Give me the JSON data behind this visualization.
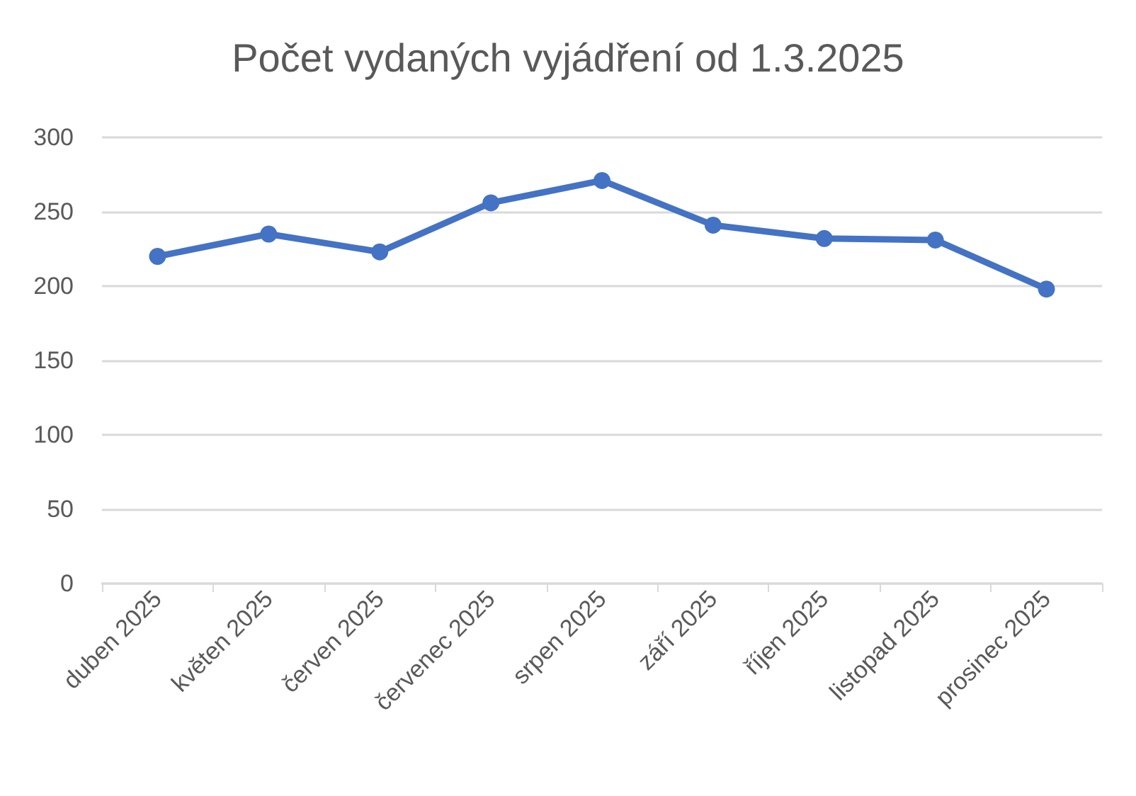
{
  "chart_data": {
    "type": "line",
    "title": "Počet vydaných vyjádření od 1.3.2025",
    "categories": [
      "duben 2025",
      "květen 2025",
      "červen 2025",
      "červenec 2025",
      "srpen 2025",
      "září 2025",
      "říjen 2025",
      "listopad 2025",
      "prosinec 2025"
    ],
    "series": [
      {
        "color": "#4472c4",
        "values": [
          220,
          235,
          223,
          256,
          271,
          241,
          232,
          231,
          198
        ]
      }
    ],
    "ylim": [
      0,
      300
    ],
    "yticks": [
      0,
      50,
      100,
      150,
      200,
      250,
      300
    ],
    "grid": "y",
    "marker": "circle",
    "line_style": "solid"
  }
}
